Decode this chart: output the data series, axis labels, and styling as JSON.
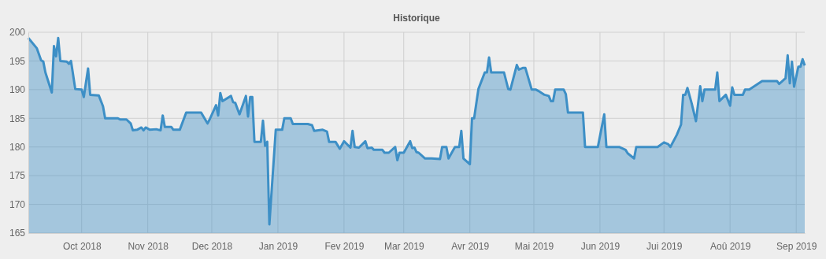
{
  "chart_data": {
    "type": "area",
    "title": "Historique",
    "x": [
      "2018-09-06",
      "2018-09-10",
      "2018-09-12",
      "2018-09-13",
      "2018-09-14",
      "2018-09-17",
      "2018-09-18",
      "2018-09-19",
      "2018-09-20",
      "2018-09-21",
      "2018-09-24",
      "2018-09-25",
      "2018-09-26",
      "2018-09-28",
      "2018-10-01",
      "2018-10-02",
      "2018-10-04",
      "2018-10-05",
      "2018-10-09",
      "2018-10-11",
      "2018-10-12",
      "2018-10-18",
      "2018-10-19",
      "2018-10-22",
      "2018-10-24",
      "2018-10-25",
      "2018-10-27",
      "2018-10-29",
      "2018-10-30",
      "2018-10-31",
      "2018-11-02",
      "2018-11-05",
      "2018-11-07",
      "2018-11-08",
      "2018-11-09",
      "2018-11-12",
      "2018-11-13",
      "2018-11-16",
      "2018-11-19",
      "2018-11-26",
      "2018-11-29",
      "2018-11-30",
      "2018-12-03",
      "2018-12-04",
      "2018-12-05",
      "2018-12-06",
      "2018-12-10",
      "2018-12-11",
      "2018-12-12",
      "2018-12-14",
      "2018-12-17",
      "2018-12-18",
      "2018-12-19",
      "2018-12-20",
      "2018-12-21",
      "2018-12-24",
      "2018-12-25",
      "2018-12-26",
      "2018-12-27",
      "2018-12-28",
      "2018-12-31",
      "2019-01-03",
      "2019-01-04",
      "2019-01-07",
      "2019-01-08",
      "2019-01-15",
      "2019-01-17",
      "2019-01-18",
      "2019-01-22",
      "2019-01-24",
      "2019-01-25",
      "2019-01-28",
      "2019-01-30",
      "2019-02-01",
      "2019-02-04",
      "2019-02-05",
      "2019-02-06",
      "2019-02-08",
      "2019-02-11",
      "2019-02-12",
      "2019-02-14",
      "2019-02-15",
      "2019-02-19",
      "2019-02-20",
      "2019-02-22",
      "2019-02-25",
      "2019-02-26",
      "2019-02-27",
      "2019-03-01",
      "2019-03-04",
      "2019-03-05",
      "2019-03-06",
      "2019-03-07",
      "2019-03-08",
      "2019-03-11",
      "2019-03-14",
      "2019-03-18",
      "2019-03-19",
      "2019-03-21",
      "2019-03-22",
      "2019-03-25",
      "2019-03-27",
      "2019-03-28",
      "2019-03-29",
      "2019-04-01",
      "2019-04-02",
      "2019-04-03",
      "2019-04-05",
      "2019-04-08",
      "2019-04-09",
      "2019-04-10",
      "2019-04-11",
      "2019-04-17",
      "2019-04-19",
      "2019-04-20",
      "2019-04-23",
      "2019-04-24",
      "2019-04-26",
      "2019-04-27",
      "2019-04-30",
      "2019-05-02",
      "2019-05-03",
      "2019-05-06",
      "2019-05-08",
      "2019-05-09",
      "2019-05-10",
      "2019-05-11",
      "2019-05-15",
      "2019-05-16",
      "2019-05-17",
      "2019-05-24",
      "2019-05-25",
      "2019-05-31",
      "2019-06-03",
      "2019-06-04",
      "2019-06-10",
      "2019-06-13",
      "2019-06-14",
      "2019-06-17",
      "2019-06-18",
      "2019-06-28",
      "2019-07-01",
      "2019-07-03",
      "2019-07-04",
      "2019-07-07",
      "2019-07-09",
      "2019-07-10",
      "2019-07-11",
      "2019-07-12",
      "2019-07-14",
      "2019-07-16",
      "2019-07-18",
      "2019-07-19",
      "2019-07-20",
      "2019-07-25",
      "2019-07-26",
      "2019-07-27",
      "2019-07-30",
      "2019-08-01",
      "2019-08-02",
      "2019-08-03",
      "2019-08-07",
      "2019-08-08",
      "2019-08-10",
      "2019-08-16",
      "2019-08-23",
      "2019-08-24",
      "2019-08-27",
      "2019-08-28",
      "2019-08-29",
      "2019-08-30",
      "2019-08-31",
      "2019-09-02",
      "2019-09-03",
      "2019-09-04",
      "2019-09-05"
    ],
    "series": [
      {
        "color": "#3d8fc6",
        "values": [
          199.0,
          197.2,
          195.1,
          194.9,
          193.0,
          189.5,
          197.6,
          195.8,
          199.0,
          195.0,
          194.9,
          194.5,
          195.0,
          190.1,
          190.0,
          188.7,
          193.7,
          189.1,
          189.0,
          187.1,
          185.0,
          185.0,
          184.8,
          184.8,
          184.1,
          182.9,
          183.0,
          183.4,
          182.9,
          183.4,
          183.0,
          183.1,
          182.9,
          185.5,
          183.5,
          183.5,
          183.0,
          183.0,
          186.0,
          186.0,
          184.1,
          184.8,
          187.3,
          185.5,
          189.4,
          188.0,
          188.9,
          187.8,
          187.7,
          185.7,
          188.9,
          185.3,
          188.7,
          188.7,
          180.9,
          180.9,
          184.6,
          180.2,
          180.9,
          166.5,
          183.0,
          183.0,
          185.0,
          185.0,
          184.0,
          184.0,
          183.8,
          182.8,
          183.0,
          182.7,
          180.9,
          180.9,
          179.7,
          181.0,
          179.9,
          182.8,
          180.0,
          179.9,
          181.0,
          179.8,
          179.9,
          179.5,
          179.5,
          179.0,
          179.0,
          180.0,
          177.7,
          179.0,
          179.0,
          181.0,
          179.8,
          179.9,
          179.1,
          179.0,
          178.0,
          178.0,
          177.9,
          180.0,
          180.0,
          178.0,
          180.0,
          180.0,
          182.8,
          178.0,
          177.0,
          185.0,
          185.0,
          190.1,
          193.0,
          193.0,
          195.6,
          193.0,
          193.0,
          190.1,
          190.0,
          194.3,
          193.5,
          193.8,
          193.8,
          190.0,
          190.0,
          189.8,
          189.1,
          188.9,
          188.0,
          188.0,
          190.0,
          190.0,
          189.2,
          186.0,
          186.0,
          180.0,
          180.0,
          185.7,
          180.0,
          180.0,
          179.5,
          178.9,
          178.0,
          180.0,
          180.0,
          180.8,
          180.5,
          180.0,
          182.1,
          183.9,
          189.1,
          189.1,
          190.3,
          187.6,
          184.5,
          190.6,
          188.0,
          190.0,
          190.0,
          193.0,
          188.0,
          189.1,
          187.2,
          190.4,
          189.1,
          189.1,
          190.0,
          190.0,
          191.5,
          191.5,
          191.0,
          192.0,
          196.0,
          191.1,
          194.9,
          190.5,
          194.0,
          194.0,
          195.3,
          194.2
        ]
      }
    ],
    "xlim": [
      "2018-09-06",
      "2019-09-05"
    ],
    "xticks": [
      {
        "value": "2018-10-01",
        "label": "Oct 2018"
      },
      {
        "value": "2018-11-01",
        "label": "Nov 2018"
      },
      {
        "value": "2018-12-01",
        "label": "Dec 2018"
      },
      {
        "value": "2019-01-01",
        "label": "Jan 2019"
      },
      {
        "value": "2019-02-01",
        "label": "Fev 2019"
      },
      {
        "value": "2019-03-01",
        "label": "Mar 2019"
      },
      {
        "value": "2019-04-01",
        "label": "Avr 2019"
      },
      {
        "value": "2019-05-01",
        "label": "Mai 2019"
      },
      {
        "value": "2019-06-01",
        "label": "Jun 2019"
      },
      {
        "value": "2019-07-01",
        "label": "Jui 2019"
      },
      {
        "value": "2019-08-01",
        "label": "Aoû 2019"
      },
      {
        "value": "2019-09-01",
        "label": "Sep 2019"
      }
    ],
    "ylim": [
      165,
      200
    ],
    "yticks": [
      165,
      170,
      175,
      180,
      185,
      190,
      195,
      200
    ],
    "grid": true,
    "line_style": "solid",
    "marker": "none"
  }
}
